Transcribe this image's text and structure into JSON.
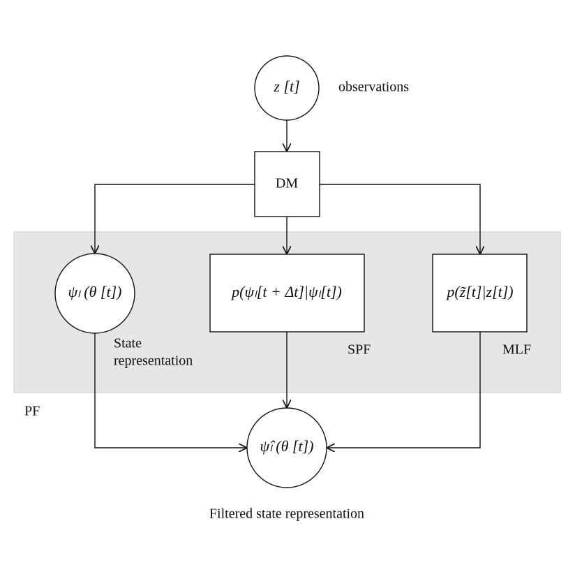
{
  "nodes": [
    {
      "label": "z [t]",
      "note": "observations"
    },
    {
      "label": "DM"
    },
    {
      "label": "ψₗ (θ [t])",
      "note_lines": [
        "State",
        "representation"
      ]
    },
    {
      "label": "p(ψₗ[t + Δt]|ψₗ[t])",
      "note": "SPF"
    },
    {
      "label": "p(z̃[t]|z[t])",
      "note": "MLF"
    },
    {
      "label": "ψ̂ₗ (θ [t])",
      "note": "Filtered state representation"
    }
  ],
  "group": {
    "label": "PF"
  }
}
